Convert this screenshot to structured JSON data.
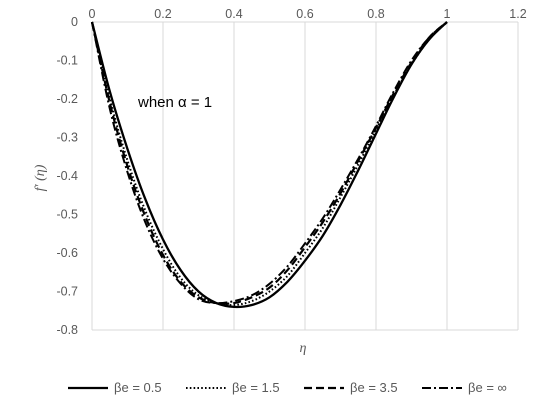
{
  "chart_data": {
    "type": "line",
    "title": "",
    "xlabel": "η",
    "ylabel": "f′ (η)",
    "xlim": [
      0,
      1.2
    ],
    "ylim": [
      -0.8,
      0
    ],
    "xticks": [
      "0",
      "0.2",
      "0.4",
      "0.6",
      "0.8",
      "1",
      "1.2"
    ],
    "yticks": [
      "0",
      "-0.1",
      "-0.2",
      "-0.3",
      "-0.4",
      "-0.5",
      "-0.6",
      "-0.7",
      "-0.8"
    ],
    "grid": "vertical",
    "legend_position": "bottom",
    "annotation": "when α = 1",
    "x": [
      0,
      0.05,
      0.1,
      0.15,
      0.2,
      0.25,
      0.3,
      0.35,
      0.4,
      0.45,
      0.5,
      0.55,
      0.6,
      0.65,
      0.7,
      0.75,
      0.8,
      0.85,
      0.9,
      0.95,
      1.0
    ],
    "series": [
      {
        "name": "βe = 0.5",
        "style": "solid",
        "values": [
          0,
          -0.18,
          -0.33,
          -0.46,
          -0.565,
          -0.645,
          -0.7,
          -0.73,
          -0.74,
          -0.735,
          -0.715,
          -0.675,
          -0.62,
          -0.555,
          -0.475,
          -0.385,
          -0.29,
          -0.195,
          -0.11,
          -0.045,
          0
        ]
      },
      {
        "name": "βe = 1.5",
        "style": "dotted",
        "values": [
          0,
          -0.2,
          -0.36,
          -0.49,
          -0.59,
          -0.665,
          -0.71,
          -0.73,
          -0.735,
          -0.725,
          -0.7,
          -0.66,
          -0.6,
          -0.535,
          -0.455,
          -0.37,
          -0.28,
          -0.19,
          -0.11,
          -0.045,
          0
        ]
      },
      {
        "name": "βe = 3.5",
        "style": "dashed",
        "values": [
          0,
          -0.21,
          -0.375,
          -0.505,
          -0.605,
          -0.675,
          -0.715,
          -0.73,
          -0.73,
          -0.715,
          -0.69,
          -0.645,
          -0.585,
          -0.52,
          -0.445,
          -0.36,
          -0.275,
          -0.185,
          -0.105,
          -0.04,
          0
        ]
      },
      {
        "name": "βe = ∞",
        "style": "dashdot",
        "values": [
          0,
          -0.225,
          -0.39,
          -0.52,
          -0.615,
          -0.68,
          -0.72,
          -0.73,
          -0.725,
          -0.71,
          -0.68,
          -0.635,
          -0.575,
          -0.51,
          -0.435,
          -0.355,
          -0.27,
          -0.18,
          -0.1,
          -0.04,
          0
        ]
      }
    ],
    "colors": {
      "line": "#000000",
      "grid": "#d9d9d9",
      "axis_text": "#595959"
    }
  }
}
